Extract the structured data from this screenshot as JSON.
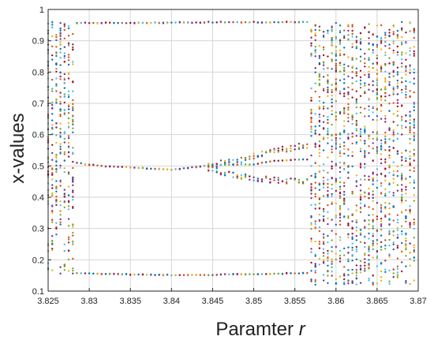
{
  "chart_data": {
    "type": "scatter",
    "title": "",
    "xlabel": "Paramter",
    "xlabel_var": "r",
    "ylabel": "x-values",
    "xlim": [
      3.825,
      3.87
    ],
    "ylim": [
      0.1,
      1.0
    ],
    "grid": true,
    "legend": "none",
    "x_ticks": [
      "3.825",
      "3.83",
      "3.835",
      "3.84",
      "3.845",
      "3.85",
      "3.855",
      "3.86",
      "3.865",
      "3.87"
    ],
    "y_ticks": [
      "0.1",
      "0.2",
      "0.3",
      "0.4",
      "0.5",
      "0.6",
      "0.7",
      "0.8",
      "0.9",
      "1"
    ],
    "point_colors": [
      "#0072bd",
      "#d95319",
      "#edb120",
      "#7e2f8e",
      "#77ac30",
      "#4dbeee",
      "#a2142f"
    ],
    "r_step": 0.0005,
    "chaotic_band": {
      "min": 0.156,
      "max": 0.96
    },
    "period3_window": {
      "r_start": 3.8285,
      "r_end": 3.8565
    },
    "period3_orbit": [
      {
        "r": 3.8285,
        "x": [
          0.957,
          0.51,
          0.157
        ]
      },
      {
        "r": 3.83,
        "x": [
          0.957,
          0.503,
          0.156
        ]
      },
      {
        "r": 3.835,
        "x": [
          0.957,
          0.495,
          0.153
        ]
      },
      {
        "r": 3.84,
        "x": [
          0.958,
          0.488,
          0.151
        ]
      },
      {
        "r": 3.845,
        "x": [
          0.959,
          0.503,
          0.152
        ]
      },
      {
        "r": 3.85,
        "x": [
          0.959,
          0.505,
          0.154
        ]
      },
      {
        "r": 3.852,
        "x": [
          0.959,
          0.515,
          0.155
        ]
      },
      {
        "r": 3.855,
        "x": [
          0.96,
          0.52,
          0.157
        ]
      }
    ],
    "period6_split": [
      {
        "r": 3.8445,
        "x": [
          0.503,
          0.49
        ]
      },
      {
        "r": 3.848,
        "x": [
          0.515,
          0.47
        ]
      },
      {
        "r": 3.85,
        "x": [
          0.53,
          0.46
        ]
      },
      {
        "r": 3.852,
        "x": [
          0.545,
          0.455
        ]
      },
      {
        "r": 3.854,
        "x": [
          0.555,
          0.45
        ]
      },
      {
        "r": 3.8565,
        "x": [
          0.565,
          0.45
        ]
      }
    ],
    "post_window_columns": {
      "r_start": 3.857,
      "r_end": 3.8695,
      "min": 0.12,
      "max": 0.96
    }
  }
}
